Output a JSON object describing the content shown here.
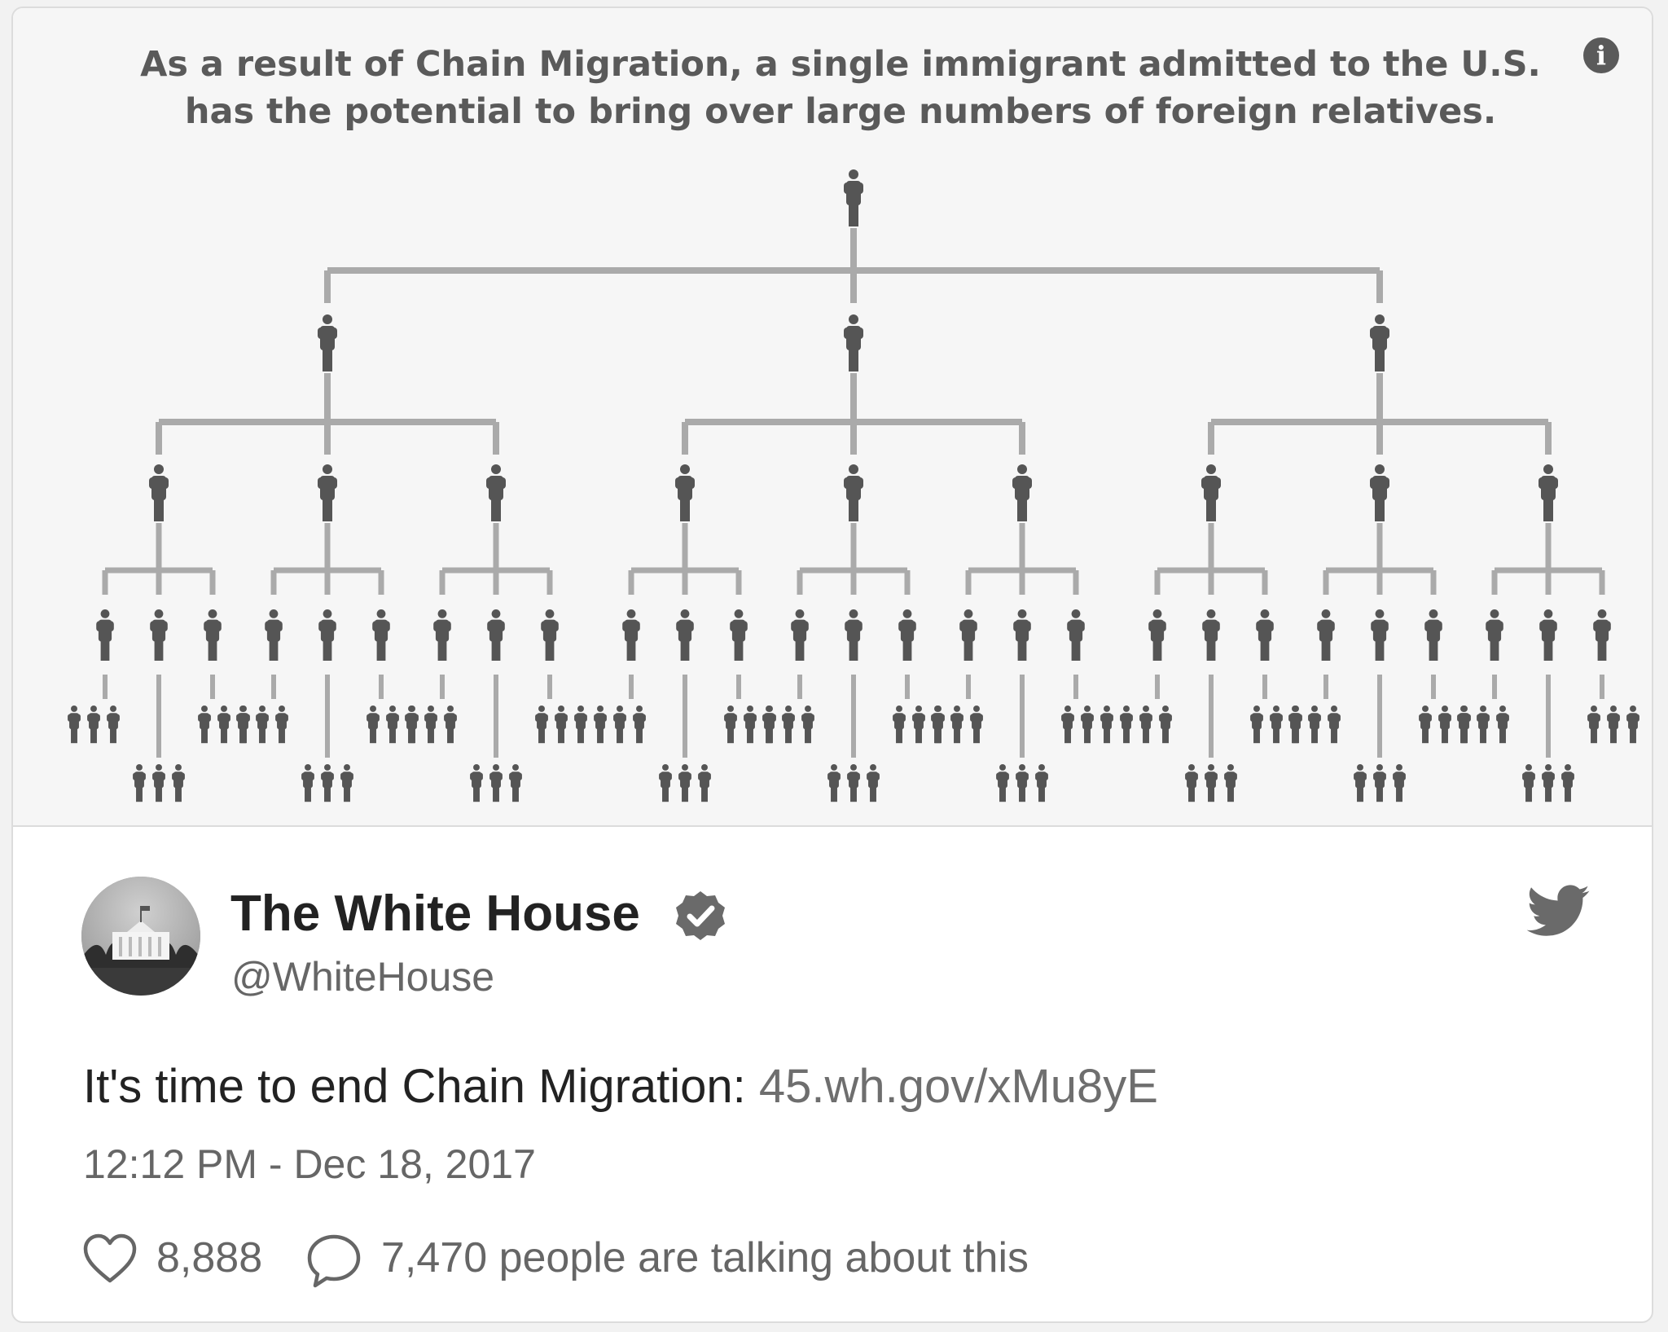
{
  "infographic": {
    "caption_line1": "As a result of Chain Migration, a single immigrant admitted to the U.S.",
    "caption_line2": "has the potential to bring over large numbers of foreign relatives.",
    "info_icon": "info-icon",
    "icon": "person-icon",
    "colors": {
      "figure": "#555555",
      "connector": "#aaaaaa"
    }
  },
  "tweet": {
    "display_name": "The White House",
    "handle": "@WhiteHouse",
    "text": "It's time to end Chain Migration: ",
    "link": "45.wh.gov/xMu8yE",
    "timestamp": "12:12 PM - Dec 18, 2017",
    "likes": "8,888",
    "talking": "7,470 people are talking about this",
    "icons": [
      "verified-badge-icon",
      "twitter-bird-icon",
      "heart-icon",
      "comment-icon"
    ]
  }
}
